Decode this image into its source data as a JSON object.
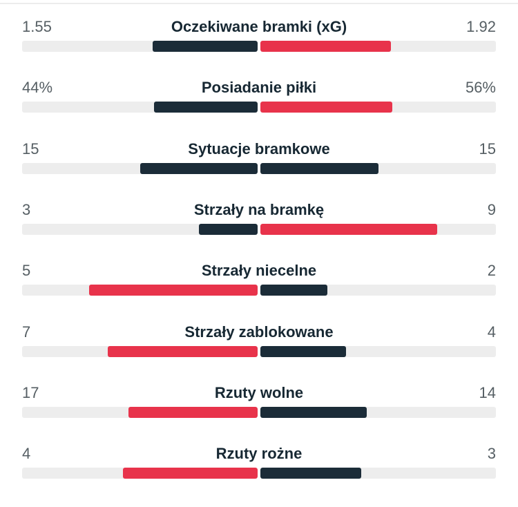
{
  "colors": {
    "leader": "#e8334b",
    "other": "#1b2c38",
    "track": "#ededed"
  },
  "stats": [
    {
      "label": "Oczekiwane bramki (xG)",
      "home": "1.55",
      "away": "1.92",
      "home_value": 1.55,
      "away_value": 1.92
    },
    {
      "label": "Posiadanie piłki",
      "home": "44%",
      "away": "56%",
      "home_value": 44,
      "away_value": 56
    },
    {
      "label": "Sytuacje bramkowe",
      "home": "15",
      "away": "15",
      "home_value": 15,
      "away_value": 15
    },
    {
      "label": "Strzały na bramkę",
      "home": "3",
      "away": "9",
      "home_value": 3,
      "away_value": 9
    },
    {
      "label": "Strzały niecelne",
      "home": "5",
      "away": "2",
      "home_value": 5,
      "away_value": 2
    },
    {
      "label": "Strzały zablokowane",
      "home": "7",
      "away": "4",
      "home_value": 7,
      "away_value": 4
    },
    {
      "label": "Rzuty wolne",
      "home": "17",
      "away": "14",
      "home_value": 17,
      "away_value": 14
    },
    {
      "label": "Rzuty rożne",
      "home": "4",
      "away": "3",
      "home_value": 4,
      "away_value": 3
    }
  ]
}
